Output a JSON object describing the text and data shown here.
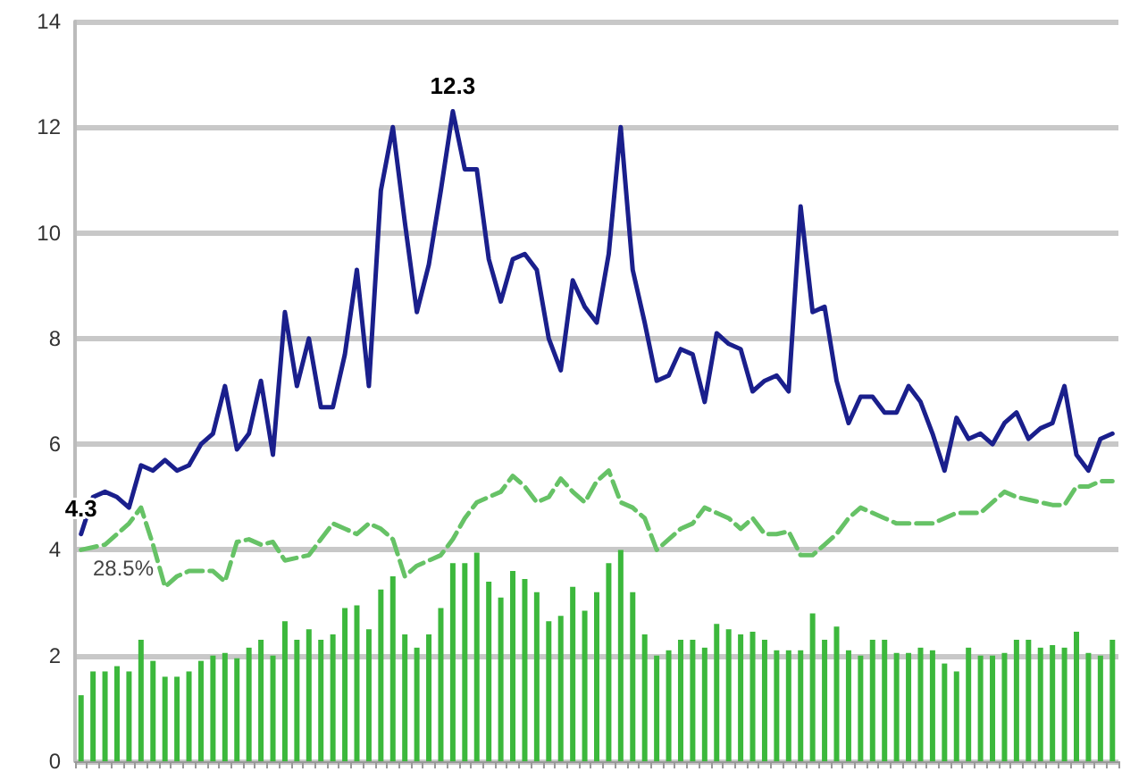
{
  "chart_data": {
    "type": "line",
    "categories": [
      null,
      null,
      null,
      null,
      null,
      null,
      null,
      null,
      null,
      null,
      null,
      null,
      null,
      null,
      null,
      null,
      null,
      null,
      null,
      null,
      null,
      null,
      null,
      null,
      null,
      null,
      null,
      null,
      null,
      null,
      null,
      null,
      null,
      null,
      null,
      null,
      null,
      null,
      null,
      null,
      null,
      null,
      null,
      null,
      null,
      null,
      null,
      null,
      null,
      null,
      null,
      null,
      null,
      null,
      null,
      null,
      null,
      null,
      null,
      null,
      null,
      null,
      null,
      null,
      null,
      null,
      null,
      null,
      null,
      null,
      null,
      null,
      null,
      null,
      null,
      null,
      null,
      null,
      null,
      null,
      null,
      null,
      null,
      null,
      null,
      null,
      null
    ],
    "series": [
      {
        "type": "bar",
        "color": "#3cb83c",
        "values": [
          1.25,
          1.7,
          1.7,
          1.8,
          1.7,
          2.3,
          1.9,
          1.6,
          1.6,
          1.7,
          1.9,
          2.0,
          2.05,
          1.95,
          2.15,
          2.3,
          2.0,
          2.65,
          2.3,
          2.5,
          2.3,
          2.4,
          2.9,
          2.95,
          2.5,
          3.25,
          3.5,
          2.4,
          2.15,
          2.4,
          2.9,
          3.75,
          3.75,
          3.95,
          3.4,
          3.1,
          3.6,
          3.45,
          3.2,
          2.65,
          2.75,
          3.3,
          2.85,
          3.2,
          3.75,
          4.0,
          3.2,
          2.4,
          2.0,
          2.1,
          2.3,
          2.3,
          2.15,
          2.6,
          2.5,
          2.4,
          2.45,
          2.3,
          2.1,
          2.1,
          2.1,
          2.8,
          2.3,
          2.55,
          2.1,
          2.0,
          2.3,
          2.3,
          2.05,
          2.05,
          2.15,
          2.1,
          1.85,
          1.7,
          2.15,
          2.0,
          2.0,
          2.05,
          2.3,
          2.3,
          2.15,
          2.2,
          2.15,
          2.45,
          2.05,
          2.0,
          2.3
        ]
      },
      {
        "color": "#66c266",
        "line_style": "dashed",
        "values": [
          4.0,
          4.05,
          4.1,
          4.3,
          4.5,
          4.8,
          4.1,
          3.3,
          3.5,
          3.6,
          3.6,
          3.6,
          3.4,
          4.15,
          4.2,
          4.1,
          4.15,
          3.8,
          3.85,
          3.9,
          4.2,
          4.5,
          4.4,
          4.3,
          4.5,
          4.4,
          4.2,
          3.5,
          3.7,
          3.8,
          3.9,
          4.2,
          4.6,
          4.9,
          5.0,
          5.1,
          5.4,
          5.2,
          4.9,
          5.0,
          5.35,
          5.1,
          4.9,
          5.3,
          5.5,
          4.9,
          4.8,
          4.6,
          4.0,
          4.2,
          4.4,
          4.5,
          4.8,
          4.7,
          4.6,
          4.4,
          4.6,
          4.3,
          4.3,
          4.35,
          3.9,
          3.9,
          4.1,
          4.3,
          4.6,
          4.8,
          4.7,
          4.6,
          4.5,
          4.5,
          4.5,
          4.5,
          4.6,
          4.7,
          4.7,
          4.7,
          4.9,
          5.1,
          5.0,
          4.95,
          4.9,
          4.85,
          4.85,
          5.2,
          5.2,
          5.3,
          5.3
        ]
      },
      {
        "color": "#1a1f8c",
        "line_style": "solid",
        "values": [
          4.3,
          5.0,
          5.1,
          5.0,
          4.8,
          5.6,
          5.5,
          5.7,
          5.5,
          5.6,
          6.0,
          6.2,
          7.1,
          5.9,
          6.2,
          7.2,
          5.8,
          8.5,
          7.1,
          8.0,
          6.7,
          6.7,
          7.7,
          9.3,
          7.1,
          10.8,
          12.0,
          10.2,
          8.5,
          9.4,
          10.8,
          12.3,
          11.2,
          11.2,
          9.5,
          8.7,
          9.5,
          9.6,
          9.3,
          8.0,
          7.4,
          9.1,
          8.6,
          8.3,
          9.6,
          12.0,
          9.3,
          8.3,
          7.2,
          7.3,
          7.8,
          7.7,
          6.8,
          8.1,
          7.9,
          7.8,
          7.0,
          7.2,
          7.3,
          7.0,
          10.5,
          8.5,
          8.6,
          7.2,
          6.4,
          6.9,
          6.9,
          6.6,
          6.6,
          7.1,
          6.8,
          6.2,
          5.5,
          6.5,
          6.1,
          6.2,
          6.0,
          6.4,
          6.6,
          6.1,
          6.3,
          6.4,
          7.1,
          5.8,
          5.5,
          6.1,
          6.2
        ],
        "value_labels": [
          "4.3",
          null,
          null,
          null,
          null,
          null,
          null,
          null,
          null,
          null,
          null,
          null,
          null,
          null,
          null,
          null,
          null,
          null,
          null,
          null,
          null,
          null,
          null,
          null,
          null,
          null,
          null,
          null,
          null,
          null,
          null,
          "12.3",
          null,
          null,
          null,
          null,
          null,
          null,
          null,
          null,
          null,
          null,
          null,
          null,
          null,
          null,
          null,
          null,
          null,
          null,
          null,
          null,
          null,
          null,
          null,
          null,
          null,
          null,
          null,
          null,
          null,
          null,
          null,
          null,
          null,
          null,
          null,
          null,
          null,
          null,
          null,
          null,
          null,
          null,
          null,
          null,
          null,
          null,
          null,
          null,
          null,
          null,
          null,
          null,
          null,
          null,
          null
        ]
      }
    ],
    "annotations": [
      "28.5%"
    ],
    "ylim": [
      0,
      14
    ],
    "yticks": [
      0,
      2,
      4,
      6,
      8,
      10,
      12,
      14
    ],
    "grid": "y",
    "marker": "none",
    "tick_labels": "y"
  }
}
